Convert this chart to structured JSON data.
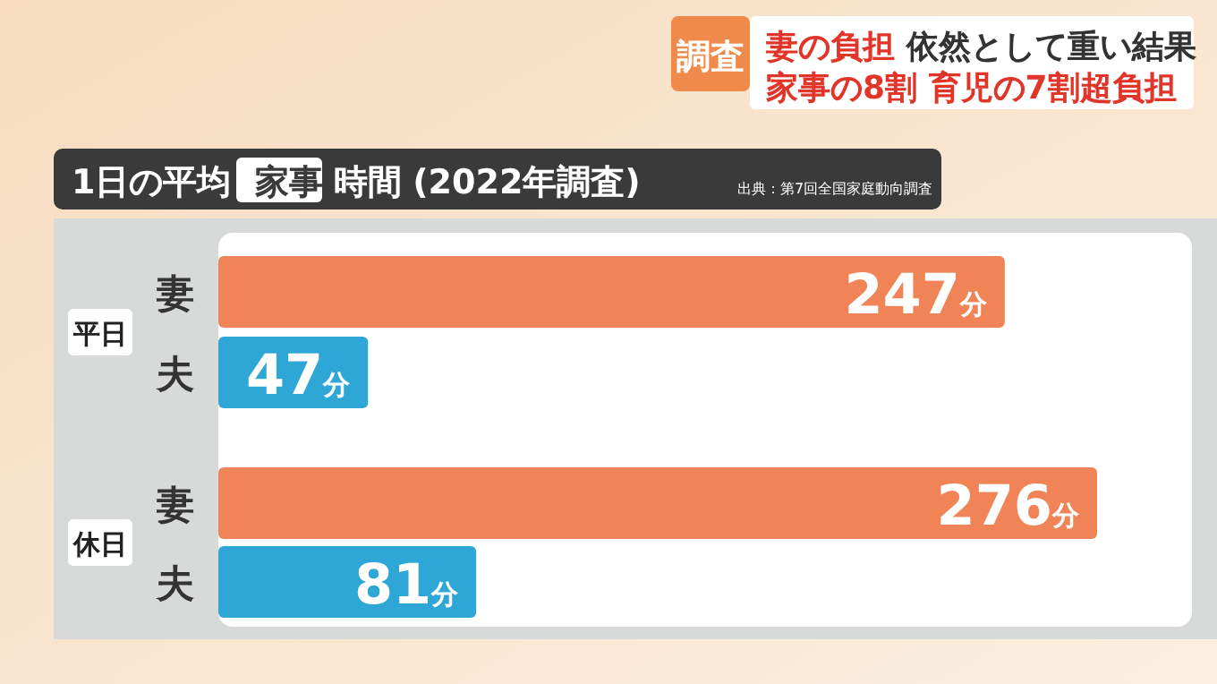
{
  "chart_data": {
    "type": "bar",
    "orientation": "horizontal",
    "title": "1日の平均 家事 時間 (2022年調査)",
    "categories": [
      "妻",
      "夫",
      "妻",
      "夫"
    ],
    "values": [
      247,
      47,
      276,
      81
    ],
    "colors": [
      "#f08456",
      "#2ea6d6",
      "#f08456",
      "#2ea6d6"
    ],
    "value_labels": [
      "247分",
      "47分",
      "276分",
      "81分"
    ],
    "annotations": [
      "調査",
      "妻の負担 依然として重い結果",
      "家事の8割 育児の7割超負担",
      "出典：第7回全国家庭動向調査",
      "平日",
      "休日"
    ],
    "tick_labels": false
  }
}
